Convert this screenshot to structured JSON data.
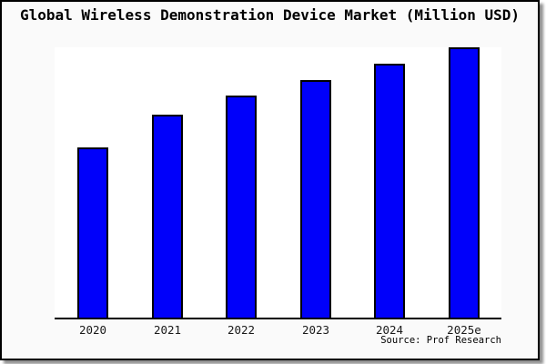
{
  "chart": {
    "title": "Global Wireless Demonstration Device Market (Million USD)",
    "source": "Source: Prof Research"
  },
  "chart_data": {
    "type": "bar",
    "title": "Global Wireless Demonstration Device Market (Million USD)",
    "categories": [
      "2020",
      "2021",
      "2022",
      "2023",
      "2024",
      "2025e"
    ],
    "values": [
      63,
      75,
      82,
      88,
      94,
      100
    ],
    "value_scale": "relative estimate, tallest bar (2025e) = 100; no y-axis ticks are shown",
    "unit": "Million USD",
    "xlabel": "",
    "ylabel": "",
    "legend": false,
    "grid": false,
    "source": "Source: Prof Research",
    "colors": {
      "bar_fill": "#0000fa",
      "bar_border": "#000000",
      "background": "#fafafa",
      "plot_background": "#ffffff",
      "axis": "#000000",
      "text": "#1a1a1a"
    }
  }
}
